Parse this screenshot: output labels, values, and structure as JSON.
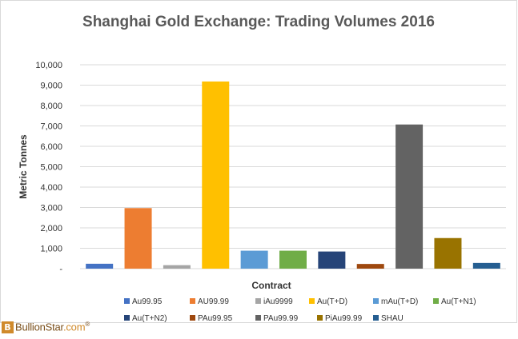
{
  "chart_data": {
    "type": "bar",
    "title": "Shanghai Gold Exchange: Trading Volumes 2016",
    "xlabel": "Contract",
    "ylabel": "Metric Tonnes",
    "ylim": [
      0,
      10000
    ],
    "yticks": [
      "-",
      "1,000",
      "2,000",
      "3,000",
      "4,000",
      "5,000",
      "6,000",
      "7,000",
      "8,000",
      "9,000",
      "10,000"
    ],
    "grid": true,
    "legend_position": "bottom",
    "categories": [
      "Au99.95",
      "AU99.99",
      "iAu9999",
      "Au(T+D)",
      "mAu(T+D)",
      "Au(T+N1)",
      "Au(T+N2)",
      "PAu99.95",
      "PAu99.99",
      "PiAu99.99",
      "SHAU"
    ],
    "values": [
      240,
      2970,
      170,
      9180,
      880,
      880,
      840,
      230,
      7070,
      1500,
      280
    ],
    "colors": [
      "#4472c4",
      "#ed7d31",
      "#a5a5a5",
      "#ffc000",
      "#5b9bd5",
      "#70ad47",
      "#264478",
      "#9e480e",
      "#636363",
      "#997300",
      "#255e91"
    ]
  },
  "logo": {
    "mark": "B",
    "name": "BullionStar",
    "suffix": ".com",
    "reg": "®"
  }
}
